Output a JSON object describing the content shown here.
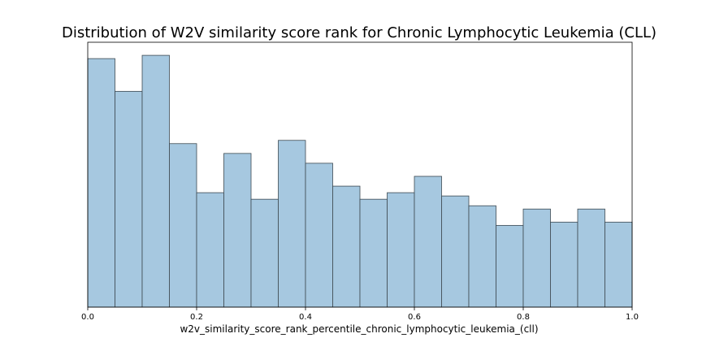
{
  "chart_data": {
    "type": "bar",
    "title": "Distribution of W2V similarity score rank for Chronic Lymphocytic Leukemia (CLL)",
    "xlabel": "w2v_similarity_score_rank_percentile_chronic_lymphocytic_leukemia_(cll)",
    "ylabel": "",
    "xlim": [
      0.0,
      1.0
    ],
    "ylim": [
      0,
      81
    ],
    "y_ticks_shown": false,
    "grid": false,
    "x_ticks": [
      "0.0",
      "0.2",
      "0.4",
      "0.6",
      "0.8",
      "1.0"
    ],
    "bin_edges": [
      0.0,
      0.05,
      0.1,
      0.15,
      0.2,
      0.25,
      0.3,
      0.35,
      0.4,
      0.45,
      0.5,
      0.55,
      0.6,
      0.65,
      0.7,
      0.75,
      0.8,
      0.85,
      0.9,
      0.95,
      1.0
    ],
    "values": [
      76,
      66,
      77,
      50,
      35,
      47,
      33,
      51,
      44,
      37,
      33,
      35,
      40,
      34,
      31,
      25,
      30,
      26,
      30,
      26
    ],
    "colors": {
      "bar_fill": "#a6c8e0",
      "bar_edge": "#3e4a52"
    }
  }
}
